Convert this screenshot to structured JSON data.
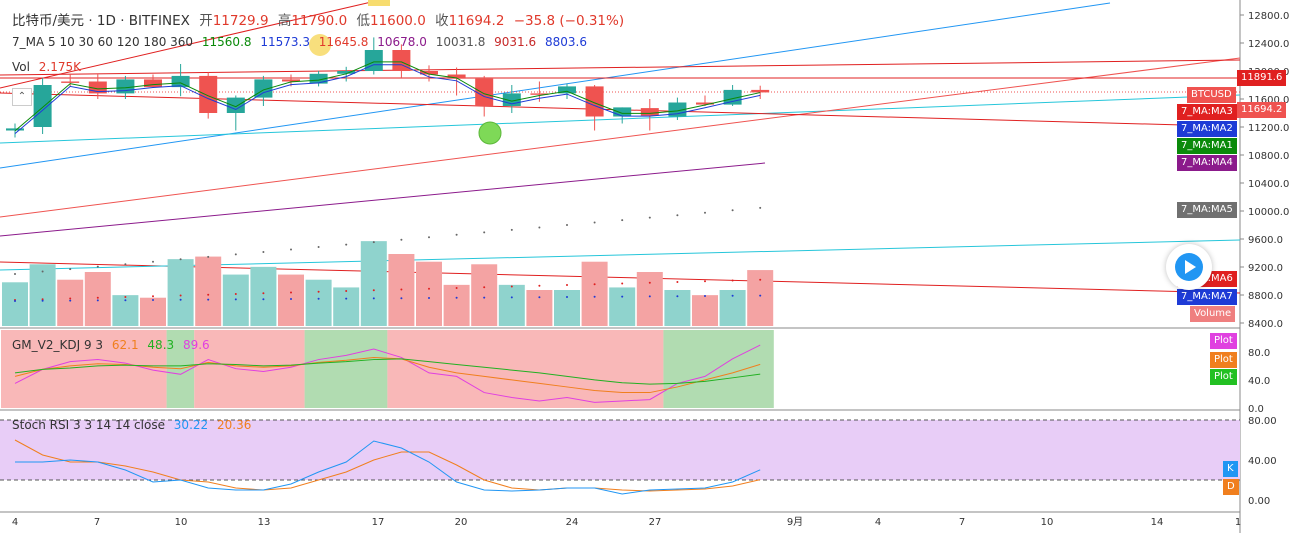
{
  "header": {
    "symbol": "比特币/美元 · 1D · BITFINEX",
    "open_label": "开",
    "open": "11729.9",
    "high_label": "高",
    "high": "11790.0",
    "low_label": "低",
    "low": "11600.0",
    "close_label": "收",
    "close": "11694.2",
    "change": "−35.8 (−0.31%)"
  },
  "ma_legend": {
    "title": "7_MA 5 10 30 60 120 180 360",
    "values": [
      "11560.8",
      "11573.3",
      "11645.8",
      "10678.0",
      "10031.8",
      "9031.6",
      "8803.6"
    ],
    "colors": [
      "#0a8a0a",
      "#1e3bd6",
      "#e0392b",
      "#8b1a8b",
      "#555555",
      "#c62828",
      "#1e3bd6"
    ]
  },
  "volume_legend": {
    "title": "Vol",
    "value": "2.175K"
  },
  "kdj_legend": {
    "title": "GM_V2_KDJ 9 3",
    "values": [
      "62.1",
      "48.3",
      "89.6"
    ],
    "colors": [
      "#f07f1e",
      "#22b022",
      "#e040e0"
    ]
  },
  "rsi_legend": {
    "title": "Stoch RSI 3 3 14 14 close",
    "values": [
      "30.22",
      "20.36"
    ],
    "colors": [
      "#2196f3",
      "#f07f1e"
    ]
  },
  "price_tags": [
    {
      "label": "11891.6",
      "color": "#e02020"
    },
    {
      "label": "BTCUSD",
      "color": "#ef5350"
    },
    {
      "label": "11694.2",
      "color": "#ef5350"
    },
    {
      "label": "7_MA:MA3",
      "color": "#e02020"
    },
    {
      "label": "7_MA:MA2",
      "color": "#1e3bd6"
    },
    {
      "label": "7_MA:MA1",
      "color": "#0a8a0a"
    },
    {
      "label": "7_MA:MA4",
      "color": "#8b1a8b"
    },
    {
      "label": "7_MA:MA5",
      "color": "#707070"
    },
    {
      "label": "7_MA:MA6",
      "color": "#e02020"
    },
    {
      "label": "7_MA:MA7",
      "color": "#1e3bd6"
    },
    {
      "label": "Volume",
      "color": "#ef7f7f"
    }
  ],
  "kdj_tags": [
    {
      "label": "Plot",
      "color": "#e040e0"
    },
    {
      "label": "Plot",
      "color": "#f07f1e"
    },
    {
      "label": "Plot",
      "color": "#22c022"
    }
  ],
  "rsi_tags": [
    {
      "label": "K",
      "color": "#2196f3"
    },
    {
      "label": "D",
      "color": "#f07f1e"
    }
  ],
  "chart_data": {
    "type": "candlestick",
    "candles": [
      {
        "x": "4",
        "o": 11150,
        "h": 11250,
        "l": 11050,
        "c": 11180
      },
      {
        "x": "5",
        "o": 11200,
        "h": 11900,
        "l": 11100,
        "c": 11800
      },
      {
        "x": "6",
        "o": 11850,
        "h": 11960,
        "l": 11780,
        "c": 11830
      },
      {
        "x": "7",
        "o": 11850,
        "h": 11950,
        "l": 11600,
        "c": 11680
      },
      {
        "x": "8",
        "o": 11680,
        "h": 11930,
        "l": 11600,
        "c": 11880
      },
      {
        "x": "9",
        "o": 11880,
        "h": 11950,
        "l": 11760,
        "c": 11770
      },
      {
        "x": "10",
        "o": 11770,
        "h": 12100,
        "l": 11640,
        "c": 11930
      },
      {
        "x": "11",
        "o": 11930,
        "h": 11980,
        "l": 11320,
        "c": 11400
      },
      {
        "x": "12",
        "o": 11400,
        "h": 11650,
        "l": 11150,
        "c": 11620
      },
      {
        "x": "13",
        "o": 11620,
        "h": 11930,
        "l": 11500,
        "c": 11880
      },
      {
        "x": "14",
        "o": 11880,
        "h": 11950,
        "l": 11780,
        "c": 11850
      },
      {
        "x": "15",
        "o": 11820,
        "h": 12000,
        "l": 11780,
        "c": 11960
      },
      {
        "x": "16",
        "o": 11960,
        "h": 12060,
        "l": 11850,
        "c": 12000
      },
      {
        "x": "17",
        "o": 12000,
        "h": 12480,
        "l": 11950,
        "c": 12300
      },
      {
        "x": "18",
        "o": 12300,
        "h": 12380,
        "l": 11900,
        "c": 12000
      },
      {
        "x": "19",
        "o": 12000,
        "h": 12080,
        "l": 11850,
        "c": 11950
      },
      {
        "x": "20",
        "o": 11950,
        "h": 12050,
        "l": 11650,
        "c": 11890
      },
      {
        "x": "21",
        "o": 11890,
        "h": 11930,
        "l": 11350,
        "c": 11500
      },
      {
        "x": "22",
        "o": 11500,
        "h": 11800,
        "l": 11400,
        "c": 11680
      },
      {
        "x": "23",
        "o": 11680,
        "h": 11850,
        "l": 11560,
        "c": 11660
      },
      {
        "x": "24",
        "o": 11680,
        "h": 11820,
        "l": 11600,
        "c": 11780
      },
      {
        "x": "25",
        "o": 11780,
        "h": 11800,
        "l": 11150,
        "c": 11350
      },
      {
        "x": "26",
        "o": 11350,
        "h": 11480,
        "l": 11250,
        "c": 11480
      },
      {
        "x": "27",
        "o": 11470,
        "h": 11600,
        "l": 11150,
        "c": 11360
      },
      {
        "x": "28",
        "o": 11350,
        "h": 11620,
        "l": 11300,
        "c": 11550
      },
      {
        "x": "29",
        "o": 11550,
        "h": 11650,
        "l": 11500,
        "c": 11520
      },
      {
        "x": "30",
        "o": 11520,
        "h": 11800,
        "l": 11500,
        "c": 11730
      },
      {
        "x": "31",
        "o": 11730,
        "h": 11790,
        "l": 11600,
        "c": 11694
      }
    ],
    "volume": [
      1.7,
      2.4,
      1.8,
      2.1,
      1.2,
      1.1,
      2.6,
      2.7,
      2.0,
      2.3,
      2.0,
      1.8,
      1.5,
      3.3,
      2.8,
      2.5,
      1.6,
      2.4,
      1.6,
      1.4,
      1.4,
      2.5,
      1.5,
      2.1,
      1.4,
      1.2,
      1.4,
      2.175
    ],
    "kdj": {
      "k": [
        45,
        55,
        60,
        63,
        62,
        58,
        56,
        65,
        60,
        58,
        60,
        65,
        68,
        72,
        70,
        58,
        50,
        45,
        40,
        35,
        30,
        25,
        22,
        22,
        30,
        40,
        50,
        62.1
      ],
      "d": [
        50,
        55,
        57,
        60,
        61,
        60,
        60,
        63,
        62,
        60,
        61,
        64,
        66,
        69,
        70,
        66,
        62,
        58,
        54,
        50,
        45,
        40,
        36,
        34,
        35,
        38,
        43,
        48.3
      ],
      "j": [
        35,
        55,
        66,
        69,
        64,
        54,
        48,
        69,
        56,
        52,
        58,
        69,
        75,
        84,
        72,
        50,
        45,
        22,
        15,
        10,
        15,
        8,
        10,
        12,
        35,
        45,
        70,
        89.6
      ]
    },
    "stoch_rsi": {
      "k": [
        38,
        38,
        40,
        38,
        30,
        18,
        20,
        12,
        10,
        10,
        16,
        28,
        38,
        59,
        52,
        38,
        18,
        10,
        9,
        10,
        12,
        12,
        6,
        10,
        11,
        12,
        18,
        30.22
      ],
      "d": [
        60,
        45,
        38,
        38,
        34,
        28,
        20,
        18,
        12,
        10,
        12,
        20,
        28,
        40,
        48,
        48,
        35,
        20,
        12,
        10,
        12,
        12,
        10,
        9,
        10,
        11,
        14,
        20.36
      ]
    },
    "price_axis": [
      "12800.0",
      "12400.0",
      "12000.0",
      "11600.0",
      "11200.0",
      "10800.0",
      "10400.0",
      "10000.0",
      "9600.0",
      "9200.0",
      "8800.0",
      "8400.0"
    ],
    "kdj_axis": [
      "80.0",
      "40.0",
      "0.0"
    ],
    "rsi_axis": [
      "80.00",
      "40.00",
      "0.00"
    ],
    "x_axis": [
      "4",
      "7",
      "10",
      "13",
      "17",
      "20",
      "24",
      "27",
      "9月",
      "4",
      "7",
      "10",
      "14",
      "1"
    ],
    "ylim": [
      8300,
      12900
    ]
  }
}
